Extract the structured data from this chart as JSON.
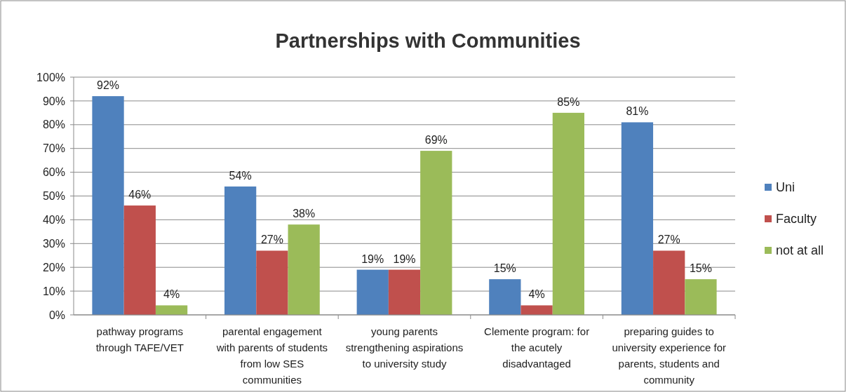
{
  "chart_data": {
    "type": "bar",
    "title": "Partnerships with Communities",
    "categories": [
      "pathway programs through TAFE/VET",
      "parental engagement with parents of students from low SES communities",
      "young parents strengthening aspirations to university study",
      "Clemente program: for the acutely disadvantaged",
      "preparing guides to university experience for parents, students and community"
    ],
    "series": [
      {
        "name": "Uni",
        "color": "#4f81bd",
        "values": [
          92,
          54,
          19,
          15,
          81
        ],
        "value_labels": [
          "92%",
          "54%",
          "19%",
          "15%",
          "81%"
        ]
      },
      {
        "name": "Faculty",
        "color": "#c0504d",
        "values": [
          46,
          27,
          19,
          4,
          27
        ],
        "value_labels": [
          "46%",
          "27%",
          "19%",
          "4%",
          "27%"
        ]
      },
      {
        "name": "not at all",
        "color": "#9bbb59",
        "values": [
          4,
          38,
          69,
          85,
          15
        ],
        "value_labels": [
          "4%",
          "38%",
          "69%",
          "85%",
          "15%"
        ]
      }
    ],
    "ylim": [
      0,
      100
    ],
    "yticks": [
      {
        "value": 0,
        "label": "0%"
      },
      {
        "value": 10,
        "label": "10%"
      },
      {
        "value": 20,
        "label": "20%"
      },
      {
        "value": 30,
        "label": "30%"
      },
      {
        "value": 40,
        "label": "40%"
      },
      {
        "value": 50,
        "label": "50%"
      },
      {
        "value": 60,
        "label": "60%"
      },
      {
        "value": 70,
        "label": "70%"
      },
      {
        "value": 80,
        "label": "80%"
      },
      {
        "value": 90,
        "label": "90%"
      },
      {
        "value": 100,
        "label": "100%"
      }
    ],
    "grid": "y",
    "legend": "right"
  }
}
